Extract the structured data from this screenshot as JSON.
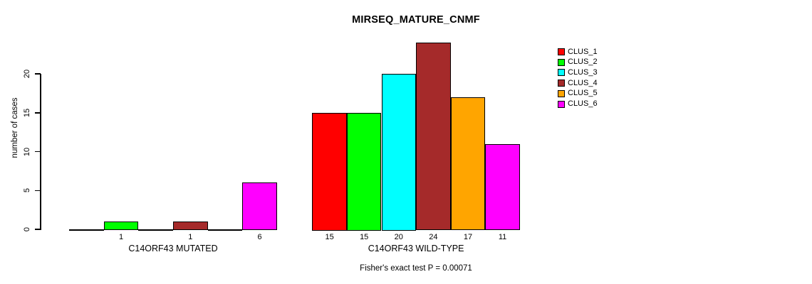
{
  "chart_data": {
    "type": "bar",
    "title": "MIRSEQ_MATURE_CNMF",
    "ylabel": "number of cases",
    "xlabel": "",
    "ylim": [
      0,
      20
    ],
    "yticks": [
      0,
      5,
      10,
      15,
      20
    ],
    "grid": false,
    "legend_position": "right-outside-top",
    "categories": [
      "C14ORF43 MUTATED",
      "C14ORF43 WILD-TYPE"
    ],
    "series": [
      {
        "name": "CLUS_1",
        "color": "#FF0000",
        "values": [
          0,
          15
        ]
      },
      {
        "name": "CLUS_2",
        "color": "#00FF00",
        "values": [
          1,
          15
        ]
      },
      {
        "name": "CLUS_3",
        "color": "#00FFFF",
        "values": [
          0,
          20
        ]
      },
      {
        "name": "CLUS_4",
        "color": "#A52A2A",
        "values": [
          1,
          24
        ]
      },
      {
        "name": "CLUS_5",
        "color": "#FFA500",
        "values": [
          0,
          17
        ]
      },
      {
        "name": "CLUS_6",
        "color": "#FF00FF",
        "values": [
          6,
          11
        ]
      }
    ],
    "bar_value_labels": {
      "show": true,
      "hide_zero": true
    },
    "footnote": "Fisher's exact test P = 0.00071",
    "colors": {
      "axis": "#000000",
      "text": "#000000",
      "background": "#FFFFFF"
    }
  }
}
